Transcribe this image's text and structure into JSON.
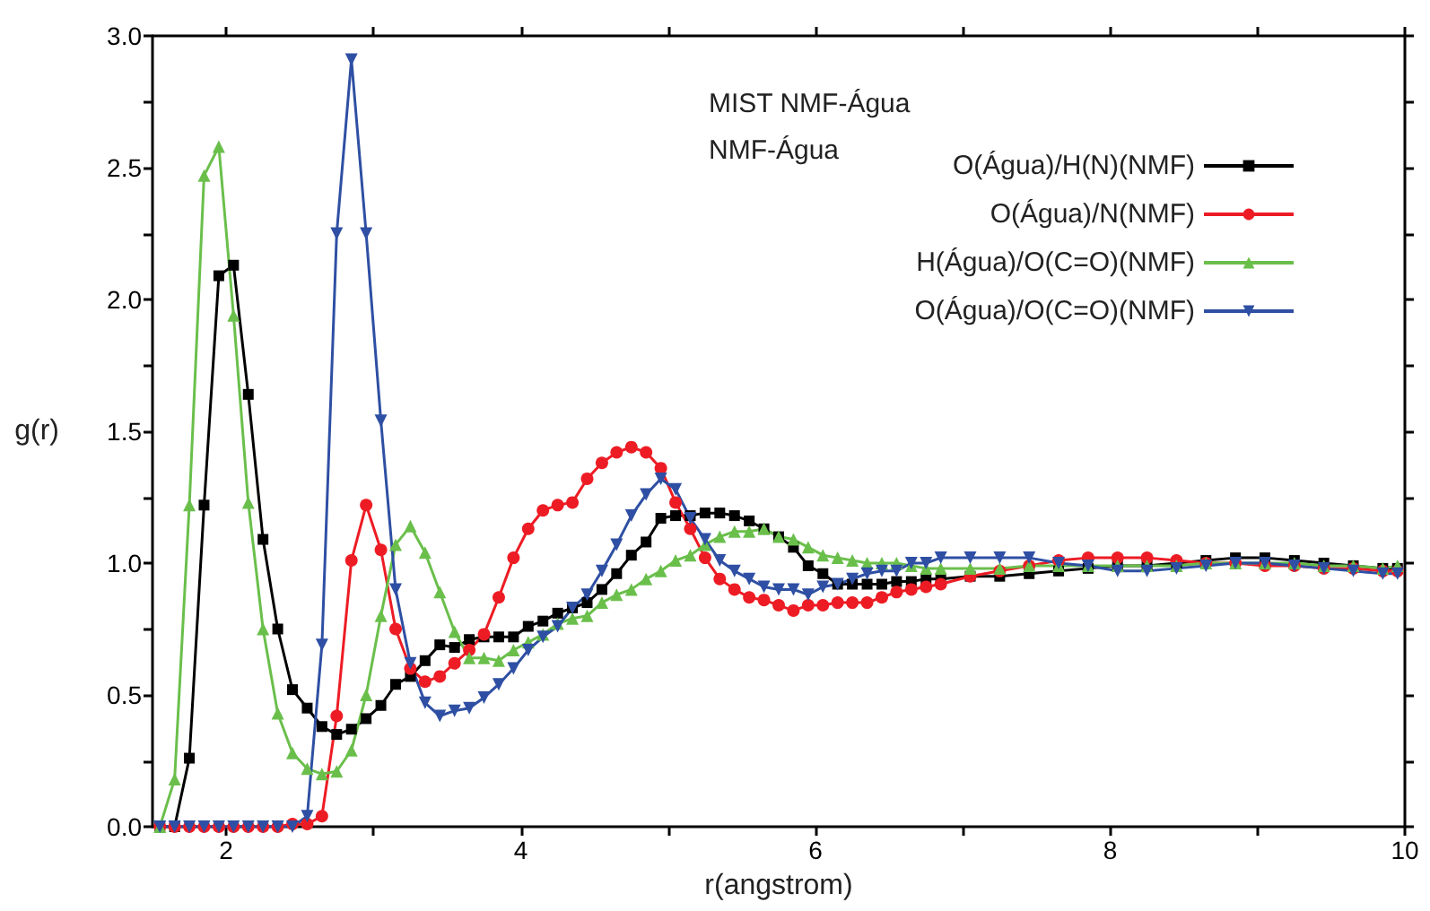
{
  "chart_data": {
    "type": "line",
    "xlabel": "r(angstrom)",
    "ylabel": "g(r)",
    "legend_title": "MIST NMF-Água\nNMF-Água",
    "legend": "top right",
    "grid": false,
    "line_style": "solid",
    "xlim": [
      1.5,
      10
    ],
    "xticks": [
      2,
      {
        "value": 3,
        "label": null
      },
      4,
      {
        "value": 5,
        "label": null
      },
      6,
      {
        "value": 7,
        "label": null
      },
      8,
      {
        "value": 9,
        "label": null
      },
      10
    ],
    "ylim": [
      0,
      3
    ],
    "yticks": [
      {
        "value": 0,
        "label": "0.0"
      },
      {
        "value": 0.25,
        "label": null
      },
      {
        "value": 0.5,
        "label": "0.5"
      },
      {
        "value": 0.75,
        "label": null
      },
      {
        "value": 1,
        "label": "1.0"
      },
      {
        "value": 1.25,
        "label": null
      },
      {
        "value": 1.5,
        "label": "1.5"
      },
      {
        "value": 1.75,
        "label": null
      },
      {
        "value": 2,
        "label": "2.0"
      },
      {
        "value": 2.25,
        "label": null
      },
      {
        "value": 2.5,
        "label": "2.5"
      },
      {
        "value": 2.75,
        "label": null
      },
      {
        "value": 3,
        "label": "3.0"
      }
    ],
    "x": [
      1.55,
      1.65,
      1.75,
      1.85,
      1.95,
      2.05,
      2.15,
      2.25,
      2.35,
      2.45,
      2.55,
      2.65,
      2.75,
      2.85,
      2.95,
      3.05,
      3.15,
      3.25,
      3.35,
      3.45,
      3.55,
      3.65,
      3.75,
      3.85,
      3.95,
      4.05,
      4.15,
      4.25,
      4.35,
      4.45,
      4.55,
      4.65,
      4.75,
      4.85,
      4.95,
      5.05,
      5.15,
      5.25,
      5.35,
      5.45,
      5.55,
      5.65,
      5.75,
      5.85,
      5.95,
      6.05,
      6.15,
      6.25,
      6.35,
      6.45,
      6.55,
      6.65,
      6.75,
      6.85,
      7.05,
      7.25,
      7.45,
      7.65,
      7.85,
      8.05,
      8.25,
      8.45,
      8.65,
      8.85,
      9.05,
      9.25,
      9.45,
      9.65,
      9.85,
      9.95
    ],
    "series": [
      {
        "name": "O(Água)/H(N)(NMF)",
        "color": "#000000",
        "marker": "square",
        "values": [
          0,
          0,
          0.26,
          1.22,
          2.09,
          2.13,
          1.64,
          1.09,
          0.75,
          0.52,
          0.45,
          0.38,
          0.35,
          0.37,
          0.41,
          0.46,
          0.54,
          0.57,
          0.63,
          0.69,
          0.68,
          0.71,
          0.72,
          0.72,
          0.72,
          0.76,
          0.78,
          0.81,
          0.83,
          0.85,
          0.9,
          0.96,
          1.03,
          1.08,
          1.17,
          1.18,
          1.18,
          1.19,
          1.19,
          1.18,
          1.16,
          1.13,
          1.1,
          1.06,
          0.99,
          0.96,
          0.92,
          0.92,
          0.92,
          0.92,
          0.93,
          0.93,
          0.94,
          0.94,
          0.95,
          0.95,
          0.96,
          0.97,
          0.98,
          0.99,
          0.99,
          1.0,
          1.01,
          1.02,
          1.02,
          1.01,
          1.0,
          0.99,
          0.98,
          0.98
        ]
      },
      {
        "name": "O(Água)/N(NMF)",
        "color": "#ed1c24",
        "marker": "circle",
        "values": [
          0,
          0,
          0,
          0,
          0,
          0,
          0,
          0,
          0,
          0.01,
          0.01,
          0.04,
          0.42,
          1.01,
          1.22,
          1.05,
          0.75,
          0.6,
          0.55,
          0.57,
          0.62,
          0.67,
          0.73,
          0.87,
          1.02,
          1.13,
          1.2,
          1.22,
          1.23,
          1.32,
          1.38,
          1.42,
          1.44,
          1.42,
          1.36,
          1.23,
          1.13,
          1.02,
          0.94,
          0.9,
          0.87,
          0.86,
          0.84,
          0.82,
          0.84,
          0.84,
          0.85,
          0.85,
          0.85,
          0.87,
          0.89,
          0.9,
          0.91,
          0.92,
          0.95,
          0.97,
          0.99,
          1.01,
          1.02,
          1.02,
          1.02,
          1.01,
          1.0,
          1.0,
          0.99,
          0.99,
          0.98,
          0.98,
          0.97,
          0.97
        ]
      },
      {
        "name": "H(Água)/O(C=O)(NMF)",
        "color": "#6abf4b",
        "marker": "triangle",
        "values": [
          0,
          0.18,
          1.22,
          2.47,
          2.58,
          1.94,
          1.23,
          0.75,
          0.43,
          0.28,
          0.22,
          0.2,
          0.21,
          0.29,
          0.5,
          0.8,
          1.07,
          1.14,
          1.04,
          0.89,
          0.74,
          0.64,
          0.64,
          0.63,
          0.67,
          0.7,
          0.73,
          0.77,
          0.79,
          0.8,
          0.85,
          0.88,
          0.9,
          0.94,
          0.97,
          1.01,
          1.03,
          1.07,
          1.1,
          1.12,
          1.12,
          1.13,
          1.1,
          1.09,
          1.06,
          1.03,
          1.02,
          1.01,
          1.0,
          1.0,
          1.0,
          0.99,
          0.98,
          0.98,
          0.98,
          0.98,
          0.99,
          0.99,
          0.99,
          0.99,
          0.99,
          0.99,
          1.0,
          1.0,
          1.0,
          1.0,
          0.99,
          0.99,
          0.98,
          0.99
        ]
      },
      {
        "name": "O(Água)/O(C=O)(NMF)",
        "color": "#2e4fa3",
        "marker": "triangle_down",
        "values": [
          0,
          0,
          0,
          0,
          0,
          0,
          0,
          0,
          0,
          0,
          0.04,
          0.69,
          2.25,
          2.91,
          2.25,
          1.54,
          0.9,
          0.62,
          0.47,
          0.42,
          0.44,
          0.45,
          0.49,
          0.54,
          0.6,
          0.67,
          0.72,
          0.76,
          0.83,
          0.88,
          0.97,
          1.07,
          1.18,
          1.26,
          1.32,
          1.28,
          1.17,
          1.09,
          1.01,
          0.97,
          0.94,
          0.91,
          0.9,
          0.9,
          0.88,
          0.91,
          0.92,
          0.94,
          0.96,
          0.97,
          0.97,
          1.0,
          1.0,
          1.02,
          1.02,
          1.02,
          1.02,
          1.0,
          0.99,
          0.97,
          0.97,
          0.98,
          0.99,
          1.0,
          1.0,
          0.99,
          0.98,
          0.97,
          0.96,
          0.96
        ]
      }
    ]
  }
}
